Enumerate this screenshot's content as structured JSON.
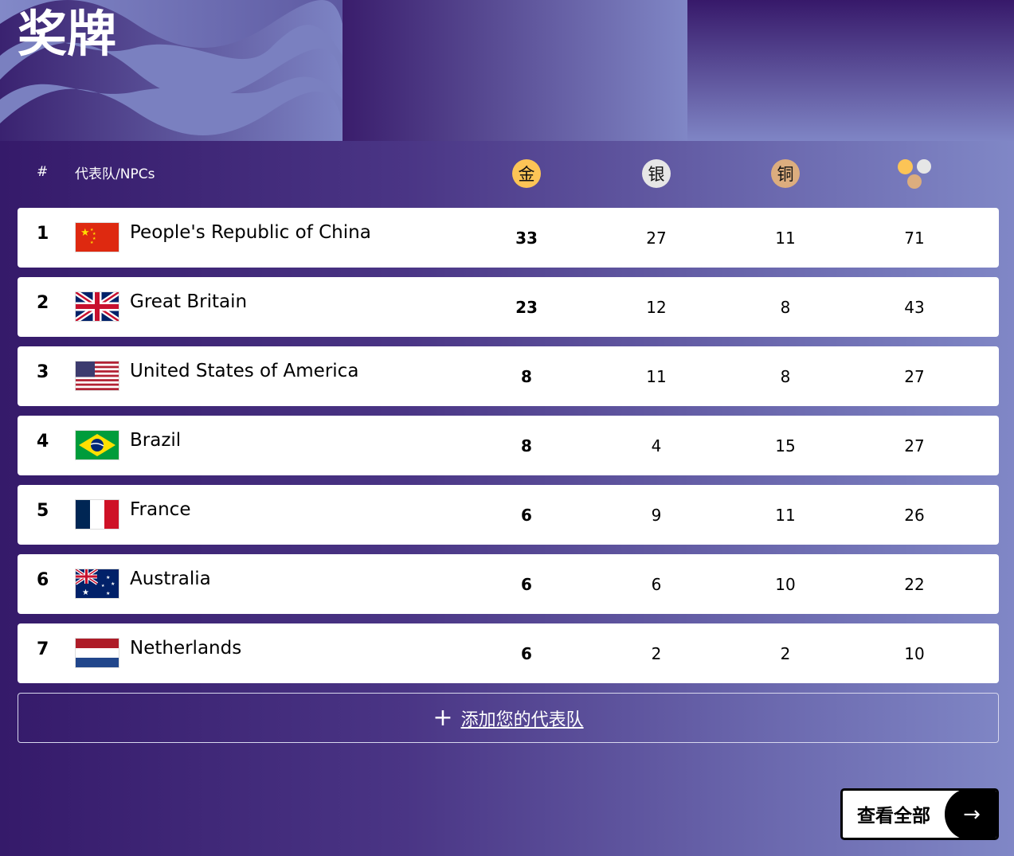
{
  "header": {
    "title": "奖牌"
  },
  "table": {
    "columns": {
      "rank": "#",
      "team": "代表队/NPCs",
      "gold": "金",
      "silver": "银",
      "bronze": "铜",
      "total_icon": "medals-total-icon"
    },
    "colors": {
      "gold": "#fcc456",
      "silver": "#e6e6e6",
      "bronze": "#dcad7e"
    },
    "rows": [
      {
        "rank": "1",
        "team": "People's Republic of China",
        "flag": "china",
        "gold": "33",
        "silver": "27",
        "bronze": "11",
        "total": "71"
      },
      {
        "rank": "2",
        "team": "Great Britain",
        "flag": "great-britain",
        "gold": "23",
        "silver": "12",
        "bronze": "8",
        "total": "43"
      },
      {
        "rank": "3",
        "team": "United States of America",
        "flag": "usa",
        "gold": "8",
        "silver": "11",
        "bronze": "8",
        "total": "27"
      },
      {
        "rank": "4",
        "team": "Brazil",
        "flag": "brazil",
        "gold": "8",
        "silver": "4",
        "bronze": "15",
        "total": "27"
      },
      {
        "rank": "5",
        "team": "France",
        "flag": "france",
        "gold": "6",
        "silver": "9",
        "bronze": "11",
        "total": "26"
      },
      {
        "rank": "6",
        "team": "Australia",
        "flag": "australia",
        "gold": "6",
        "silver": "6",
        "bronze": "10",
        "total": "22"
      },
      {
        "rank": "7",
        "team": "Netherlands",
        "flag": "netherlands",
        "gold": "6",
        "silver": "2",
        "bronze": "2",
        "total": "10"
      }
    ]
  },
  "add_team": {
    "label": "添加您的代表队",
    "icon": "plus-icon"
  },
  "view_all": {
    "label": "查看全部",
    "icon": "arrow-right-icon"
  }
}
